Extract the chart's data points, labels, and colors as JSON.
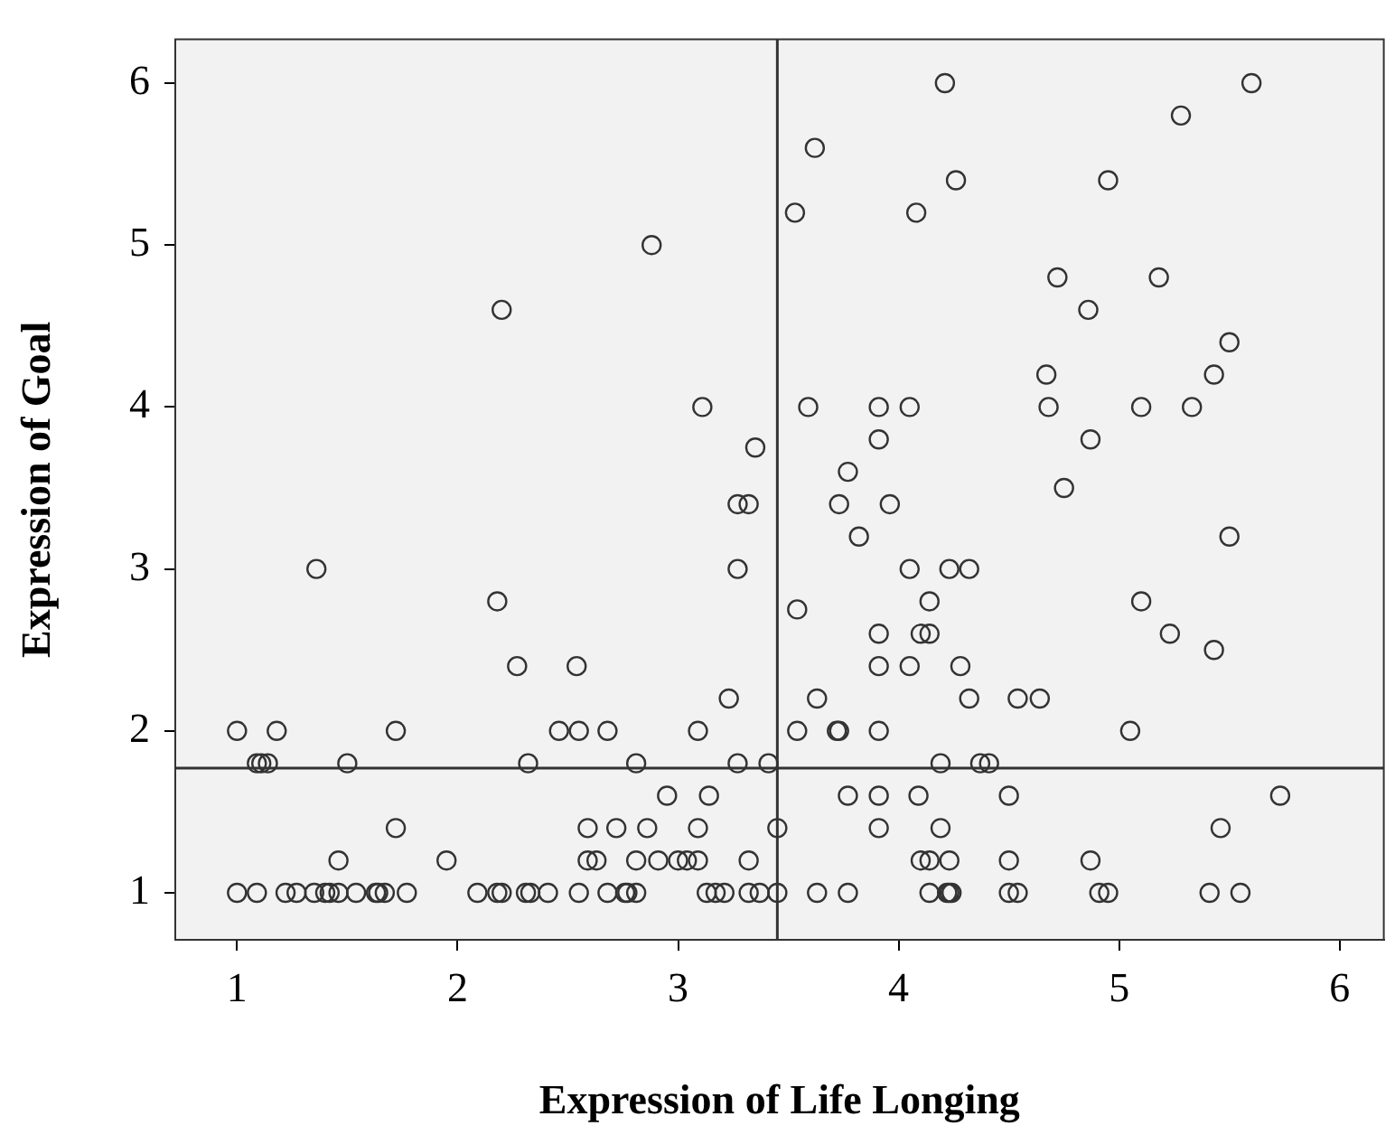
{
  "chart_data": {
    "type": "scatter",
    "xlabel": "Expression of Life Longing",
    "ylabel": "Expression of Goal",
    "xlim": [
      0.72,
      6.2
    ],
    "ylim": [
      0.71,
      6.27
    ],
    "xticks": [
      1,
      2,
      3,
      4,
      5,
      6
    ],
    "yticks": [
      1,
      2,
      3,
      4,
      5,
      6
    ],
    "grid": false,
    "legend": false,
    "marker": "circle",
    "ref_lines": [
      {
        "axis": "x",
        "value": 3.45,
        "color": "#333333"
      },
      {
        "axis": "y",
        "value": 1.77,
        "color": "#333333"
      }
    ],
    "series": [
      {
        "color": "#333333",
        "x": [
          4.21,
          5.6,
          5.28,
          3.62,
          4.26,
          4.95,
          3.53,
          4.08,
          2.88,
          2.2,
          4.72,
          5.18,
          4.86,
          5.5,
          4.67,
          5.43,
          3.59,
          3.91,
          4.05,
          4.68,
          5.1,
          5.33,
          3.11,
          3.91,
          4.87,
          3.35,
          3.77,
          3.73,
          3.96,
          3.27,
          3.32,
          4.75,
          3.82,
          5.5,
          4.05,
          4.23,
          4.32,
          1.36,
          3.27,
          3.54,
          4.14,
          5.1,
          2.18,
          3.91,
          4.1,
          4.14,
          5.23,
          5.43,
          3.91,
          4.05,
          4.28,
          2.27,
          2.54,
          3.23,
          3.63,
          4.32,
          4.54,
          4.64,
          1,
          1.18,
          1.72,
          2.46,
          2.55,
          2.68,
          3.09,
          3.54,
          3.72,
          3.73,
          3.91,
          5.05,
          1.09,
          1.11,
          1.14,
          1.5,
          2.32,
          2.81,
          3.27,
          3.41,
          4.19,
          4.37,
          4.41,
          2.95,
          3.14,
          3.77,
          3.91,
          4.09,
          4.5,
          5.73,
          1.72,
          2.59,
          2.72,
          2.86,
          3.09,
          3.45,
          3.91,
          4.19,
          5.46,
          1.46,
          1.95,
          2.59,
          2.63,
          2.81,
          2.91,
          3,
          3.04,
          3.09,
          3.32,
          4.1,
          4.14,
          4.23,
          4.5,
          4.87,
          1,
          1.09,
          1.22,
          1.27,
          1.35,
          1.4,
          1.42,
          1.46,
          1.54,
          1.63,
          1.64,
          1.67,
          1.77,
          2.09,
          2.18,
          2.2,
          2.31,
          2.33,
          2.41,
          2.55,
          2.68,
          2.76,
          2.77,
          2.81,
          3.13,
          3.17,
          3.21,
          3.32,
          3.37,
          3.45,
          3.63,
          3.77,
          4.14,
          4.22,
          4.23,
          4.24,
          4.5,
          4.54,
          4.91,
          4.95,
          5.41,
          5.55
        ],
        "values": [
          6,
          6,
          5.8,
          5.6,
          5.4,
          5.4,
          5.2,
          5.2,
          5,
          4.6,
          4.8,
          4.8,
          4.6,
          4.4,
          4.2,
          4.2,
          4,
          4,
          4,
          4,
          4,
          4,
          4,
          3.8,
          3.8,
          3.75,
          3.6,
          3.4,
          3.4,
          3.4,
          3.4,
          3.5,
          3.2,
          3.2,
          3,
          3,
          3,
          3,
          3,
          2.75,
          2.8,
          2.8,
          2.8,
          2.6,
          2.6,
          2.6,
          2.6,
          2.5,
          2.4,
          2.4,
          2.4,
          2.4,
          2.4,
          2.2,
          2.2,
          2.2,
          2.2,
          2.2,
          2,
          2,
          2,
          2,
          2,
          2,
          2,
          2,
          2,
          2,
          2,
          2,
          1.8,
          1.8,
          1.8,
          1.8,
          1.8,
          1.8,
          1.8,
          1.8,
          1.8,
          1.8,
          1.8,
          1.6,
          1.6,
          1.6,
          1.6,
          1.6,
          1.6,
          1.6,
          1.4,
          1.4,
          1.4,
          1.4,
          1.4,
          1.4,
          1.4,
          1.4,
          1.4,
          1.2,
          1.2,
          1.2,
          1.2,
          1.2,
          1.2,
          1.2,
          1.2,
          1.2,
          1.2,
          1.2,
          1.2,
          1.2,
          1.2,
          1.2,
          1,
          1,
          1,
          1,
          1,
          1,
          1,
          1,
          1,
          1,
          1,
          1,
          1,
          1,
          1,
          1,
          1,
          1,
          1,
          1,
          1,
          1,
          1,
          1,
          1,
          1,
          1,
          1,
          1,
          1,
          1,
          1,
          1,
          1,
          1,
          1,
          1,
          1,
          1,
          1,
          1,
          1
        ]
      }
    ]
  }
}
